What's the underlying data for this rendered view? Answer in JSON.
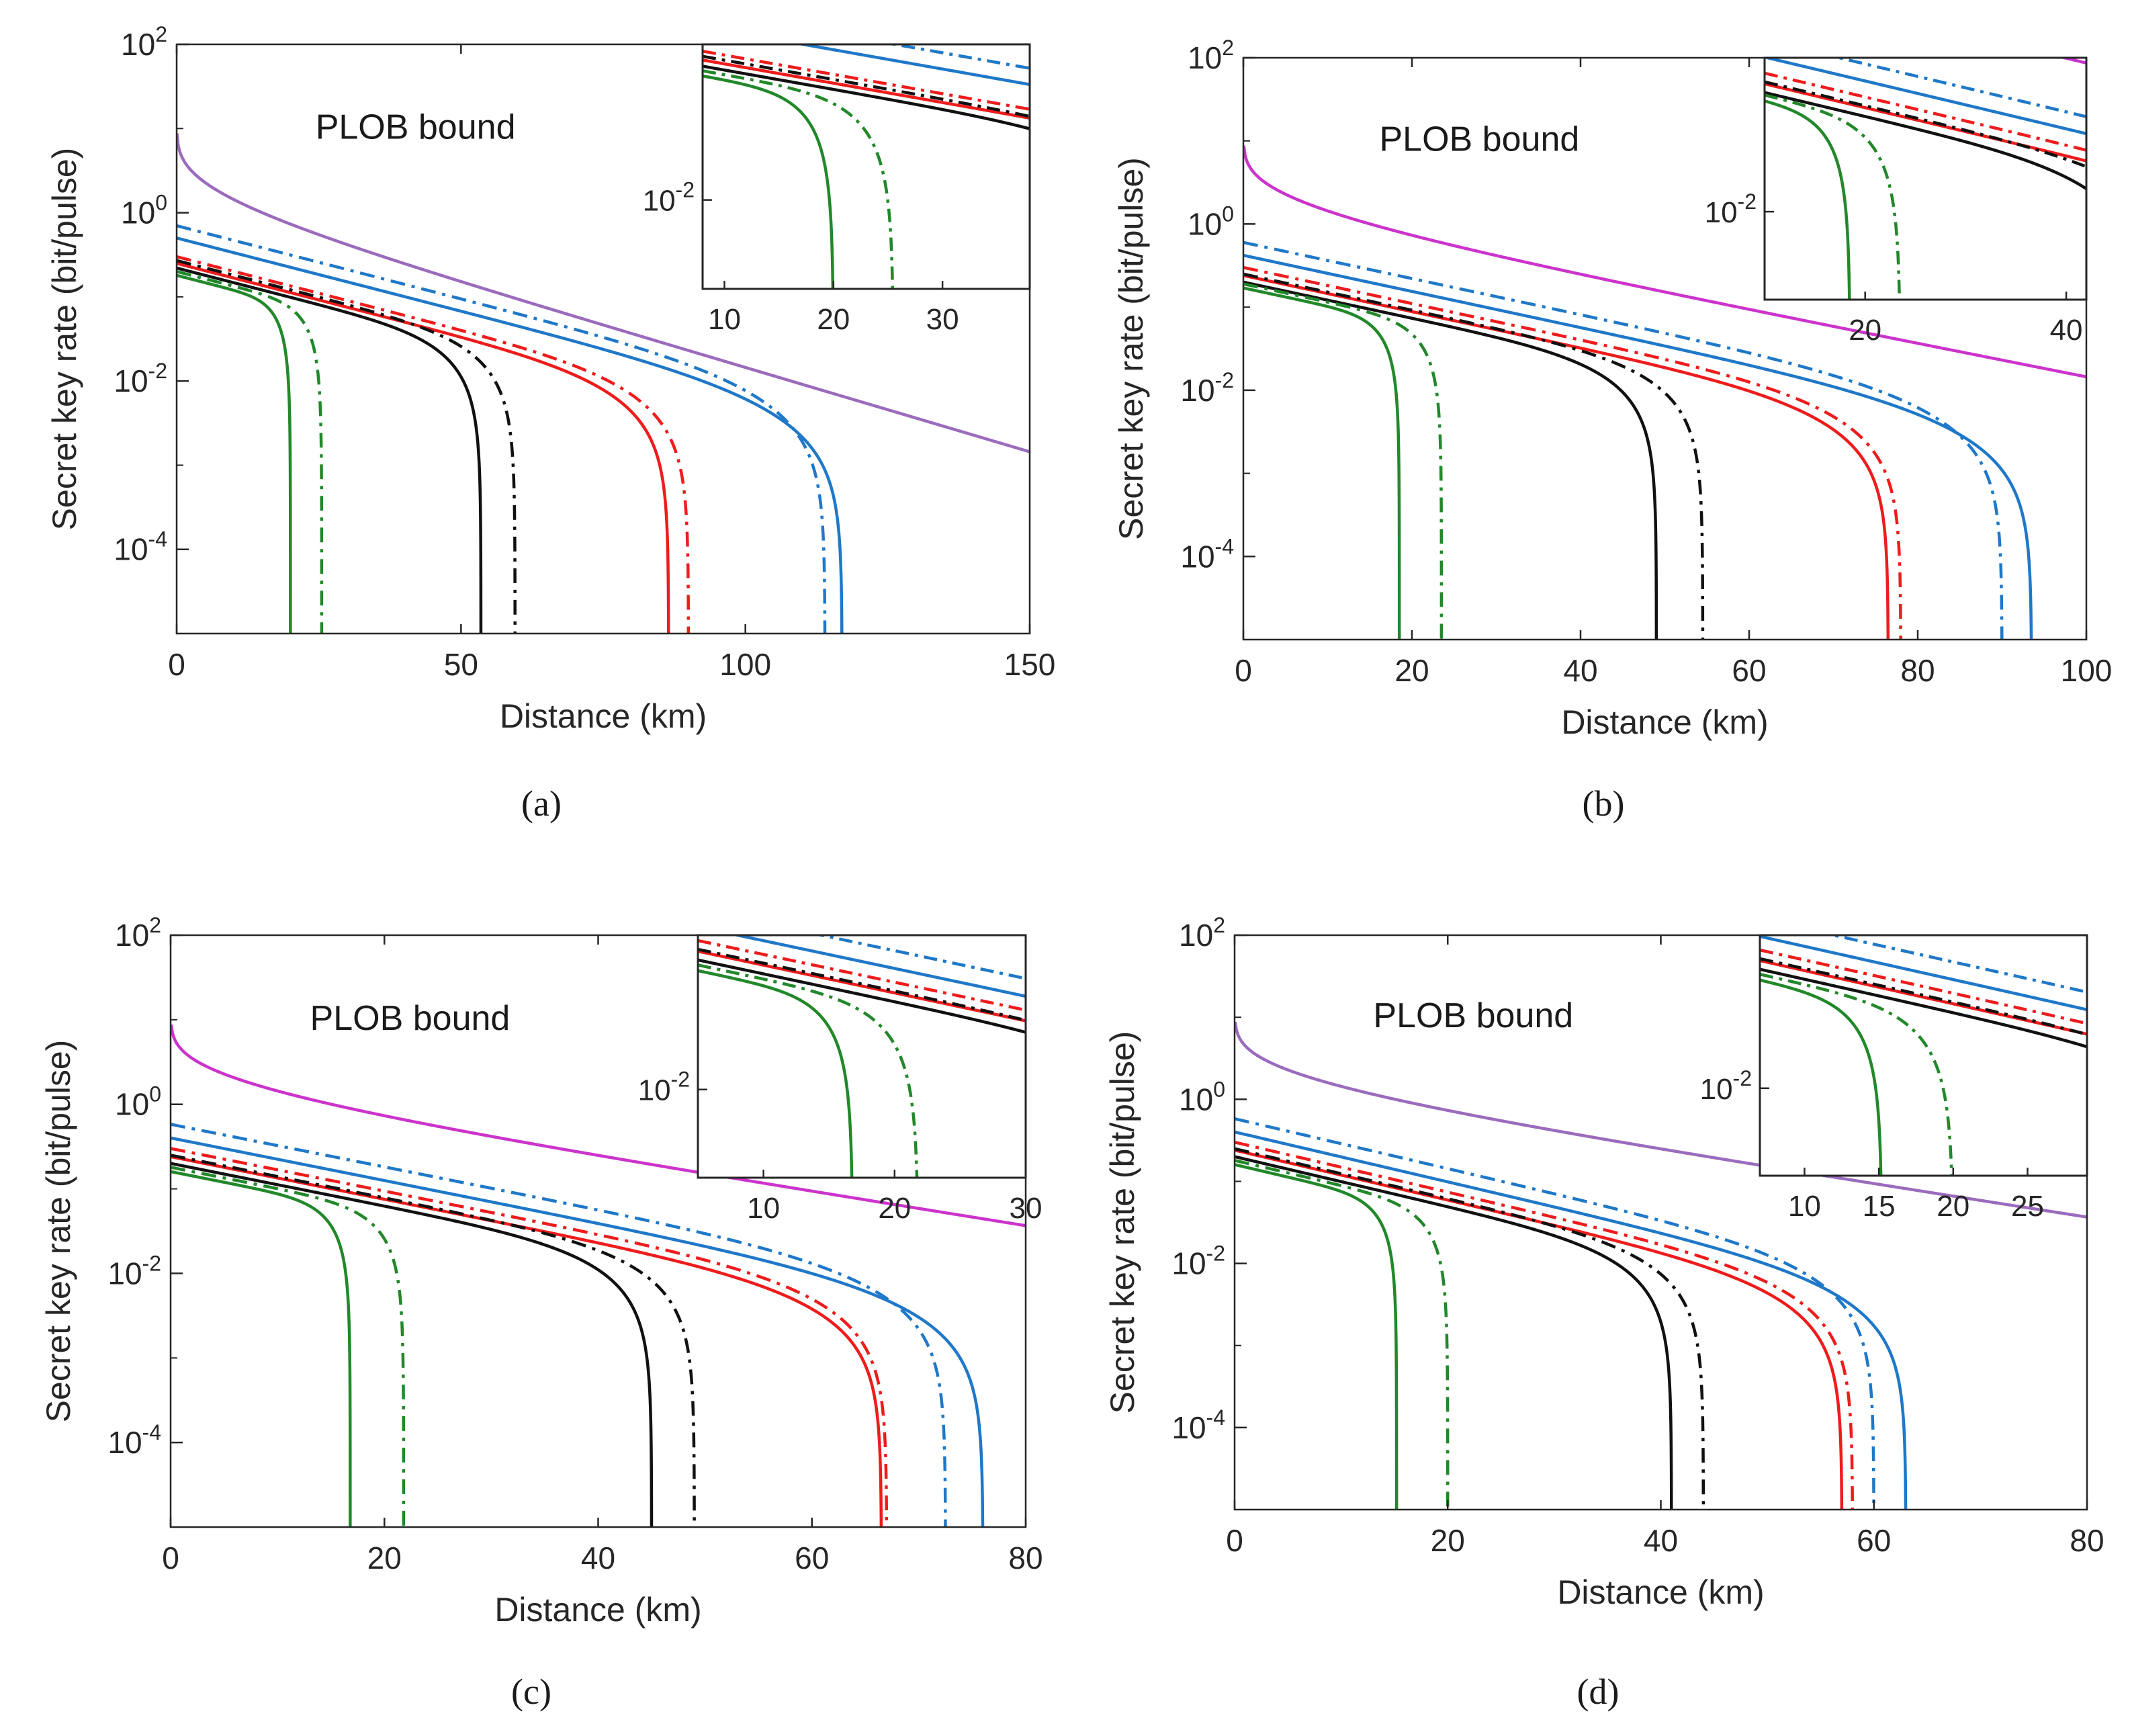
{
  "colors": {
    "plob_a": "#9b6bbd",
    "plob_b": "#cc33cc",
    "blue": "#1f78c8",
    "red": "#ee1c1c",
    "black": "#111111",
    "green": "#22882a",
    "axis": "#262626"
  },
  "styles": {
    "solid": "solid",
    "dashdot": "dash-dot"
  },
  "chart_data": [
    {
      "type": "line",
      "panel_label": "(a)",
      "xlabel": "Distance (km)",
      "ylabel": "Secret key rate (bit/pulse)",
      "yscale": "log",
      "xlim": [
        0,
        150
      ],
      "ylim_exp": [
        -5,
        2
      ],
      "xticks": [
        0,
        50,
        100,
        150
      ],
      "xticklabels": [
        "0",
        "50",
        "100",
        "150"
      ],
      "yticks_exp": [
        -4,
        -2,
        0,
        2
      ],
      "annotation": "PLOB bound",
      "plob_color": "plob_a",
      "series": [
        {
          "name": "PLOB bound",
          "color": "plob_a",
          "style": "solid",
          "kind": "plob",
          "lmax": 150
        },
        {
          "name": "blue solid",
          "color": "blue",
          "style": "solid",
          "kind": "key",
          "r0": 0.5,
          "alpha": 0.04,
          "L": 117
        },
        {
          "name": "blue dash-dot",
          "color": "blue",
          "style": "dashdot",
          "kind": "key",
          "r0": 0.7,
          "alpha": 0.04,
          "L": 114
        },
        {
          "name": "red solid",
          "color": "red",
          "style": "solid",
          "kind": "key",
          "r0": 0.25,
          "alpha": 0.04,
          "L": 86.5
        },
        {
          "name": "red dash-dot",
          "color": "red",
          "style": "dashdot",
          "kind": "key",
          "r0": 0.3,
          "alpha": 0.04,
          "L": 90
        },
        {
          "name": "black solid",
          "color": "black",
          "style": "solid",
          "kind": "key",
          "r0": 0.22,
          "alpha": 0.04,
          "L": 53.5
        },
        {
          "name": "black dash-dot",
          "color": "black",
          "style": "dashdot",
          "kind": "key",
          "r0": 0.27,
          "alpha": 0.04,
          "L": 59.5
        },
        {
          "name": "green solid",
          "color": "green",
          "style": "solid",
          "kind": "key",
          "r0": 0.18,
          "alpha": 0.04,
          "L": 20
        },
        {
          "name": "green dash-dot",
          "color": "green",
          "style": "dashdot",
          "kind": "key",
          "r0": 0.2,
          "alpha": 0.04,
          "L": 25.5
        }
      ],
      "inset": {
        "xlim": [
          8,
          38
        ],
        "ylim_exp": [
          -2.8,
          -0.6
        ],
        "xticks": [
          10,
          20,
          30
        ],
        "xticklabels": [
          "10",
          "20",
          "30"
        ],
        "yticks_exp": [
          -2
        ]
      }
    },
    {
      "type": "line",
      "panel_label": "(b)",
      "xlabel": "Distance (km)",
      "ylabel": "Secret key rate (bit/pulse)",
      "yscale": "log",
      "xlim": [
        0,
        100
      ],
      "ylim_exp": [
        -5,
        2
      ],
      "xticks": [
        0,
        20,
        40,
        60,
        80,
        100
      ],
      "xticklabels": [
        "0",
        "20",
        "40",
        "60",
        "80",
        "100"
      ],
      "yticks_exp": [
        -4,
        -2,
        0,
        2
      ],
      "annotation": "PLOB bound",
      "plob_color": "plob_b",
      "series": [
        {
          "name": "PLOB bound",
          "color": "plob_b",
          "style": "solid",
          "kind": "plob",
          "lmax": 100
        },
        {
          "name": "blue solid",
          "color": "blue",
          "style": "solid",
          "kind": "key",
          "r0": 0.42,
          "alpha": 0.05,
          "L": 93.5
        },
        {
          "name": "blue dash-dot",
          "color": "blue",
          "style": "dashdot",
          "kind": "key",
          "r0": 0.6,
          "alpha": 0.05,
          "L": 90
        },
        {
          "name": "red solid",
          "color": "red",
          "style": "solid",
          "kind": "key",
          "r0": 0.24,
          "alpha": 0.05,
          "L": 76.5
        },
        {
          "name": "red dash-dot",
          "color": "red",
          "style": "dashdot",
          "kind": "key",
          "r0": 0.3,
          "alpha": 0.05,
          "L": 78
        },
        {
          "name": "black solid",
          "color": "black",
          "style": "solid",
          "kind": "key",
          "r0": 0.2,
          "alpha": 0.05,
          "L": 49
        },
        {
          "name": "black dash-dot",
          "color": "black",
          "style": "dashdot",
          "kind": "key",
          "r0": 0.25,
          "alpha": 0.05,
          "L": 54.5
        },
        {
          "name": "green solid",
          "color": "green",
          "style": "solid",
          "kind": "key",
          "r0": 0.17,
          "alpha": 0.05,
          "L": 18.5
        },
        {
          "name": "green dash-dot",
          "color": "green",
          "style": "dashdot",
          "kind": "key",
          "r0": 0.19,
          "alpha": 0.05,
          "L": 23.5
        }
      ],
      "inset": {
        "xlim": [
          10,
          42
        ],
        "ylim_exp": [
          -2.8,
          -0.6
        ],
        "xticks": [
          20,
          40
        ],
        "xticklabels": [
          "20",
          "40"
        ],
        "yticks_exp": [
          -2
        ]
      }
    },
    {
      "type": "line",
      "panel_label": "(c)",
      "xlabel": "Distance (km)",
      "ylabel": "Secret key rate (bit/pulse)",
      "yscale": "log",
      "xlim": [
        0,
        80
      ],
      "ylim_exp": [
        -5,
        2
      ],
      "xticks": [
        0,
        20,
        40,
        60,
        80
      ],
      "xticklabels": [
        "0",
        "20",
        "40",
        "60",
        "80"
      ],
      "yticks_exp": [
        -4,
        -2,
        0,
        2
      ],
      "annotation": "PLOB bound",
      "plob_color": "plob_b",
      "series": [
        {
          "name": "PLOB bound",
          "color": "plob_b",
          "style": "solid",
          "kind": "plob",
          "lmax": 80
        },
        {
          "name": "blue solid",
          "color": "blue",
          "style": "solid",
          "kind": "key",
          "r0": 0.4,
          "alpha": 0.058,
          "L": 76
        },
        {
          "name": "blue dash-dot",
          "color": "blue",
          "style": "dashdot",
          "kind": "key",
          "r0": 0.58,
          "alpha": 0.058,
          "L": 72.5
        },
        {
          "name": "red solid",
          "color": "red",
          "style": "solid",
          "kind": "key",
          "r0": 0.24,
          "alpha": 0.058,
          "L": 66.5
        },
        {
          "name": "red dash-dot",
          "color": "red",
          "style": "dashdot",
          "kind": "key",
          "r0": 0.3,
          "alpha": 0.058,
          "L": 67
        },
        {
          "name": "black solid",
          "color": "black",
          "style": "solid",
          "kind": "key",
          "r0": 0.2,
          "alpha": 0.058,
          "L": 45
        },
        {
          "name": "black dash-dot",
          "color": "black",
          "style": "dashdot",
          "kind": "key",
          "r0": 0.25,
          "alpha": 0.058,
          "L": 49
        },
        {
          "name": "green solid",
          "color": "green",
          "style": "solid",
          "kind": "key",
          "r0": 0.16,
          "alpha": 0.058,
          "L": 16.8
        },
        {
          "name": "green dash-dot",
          "color": "green",
          "style": "dashdot",
          "kind": "key",
          "r0": 0.18,
          "alpha": 0.058,
          "L": 21.8
        }
      ],
      "inset": {
        "xlim": [
          5,
          30
        ],
        "ylim_exp": [
          -2.8,
          -0.6
        ],
        "xticks": [
          10,
          20,
          30
        ],
        "xticklabels": [
          "10",
          "20",
          "30"
        ],
        "yticks_exp": [
          -2
        ]
      }
    },
    {
      "type": "line",
      "panel_label": "(d)",
      "xlabel": "Distance (km)",
      "ylabel": "Secret key rate (bit/pulse)",
      "yscale": "log",
      "xlim": [
        0,
        80
      ],
      "ylim_exp": [
        -5,
        2
      ],
      "xticks": [
        0,
        20,
        40,
        60,
        80
      ],
      "xticklabels": [
        "0",
        "20",
        "40",
        "60",
        "80"
      ],
      "yticks_exp": [
        -4,
        -2,
        0,
        2
      ],
      "annotation": "PLOB bound",
      "plob_color": "plob_a",
      "series": [
        {
          "name": "PLOB bound",
          "color": "plob_a",
          "style": "solid",
          "kind": "plob",
          "lmax": 80
        },
        {
          "name": "blue solid",
          "color": "blue",
          "style": "solid",
          "kind": "key",
          "r0": 0.4,
          "alpha": 0.07,
          "L": 63
        },
        {
          "name": "blue dash-dot",
          "color": "blue",
          "style": "dashdot",
          "kind": "key",
          "r0": 0.58,
          "alpha": 0.07,
          "L": 60
        },
        {
          "name": "red solid",
          "color": "red",
          "style": "solid",
          "kind": "key",
          "r0": 0.24,
          "alpha": 0.07,
          "L": 57
        },
        {
          "name": "red dash-dot",
          "color": "red",
          "style": "dashdot",
          "kind": "key",
          "r0": 0.3,
          "alpha": 0.07,
          "L": 58
        },
        {
          "name": "black solid",
          "color": "black",
          "style": "solid",
          "kind": "key",
          "r0": 0.2,
          "alpha": 0.07,
          "L": 41
        },
        {
          "name": "black dash-dot",
          "color": "black",
          "style": "dashdot",
          "kind": "key",
          "r0": 0.25,
          "alpha": 0.07,
          "L": 44
        },
        {
          "name": "green solid",
          "color": "green",
          "style": "solid",
          "kind": "key",
          "r0": 0.16,
          "alpha": 0.07,
          "L": 15.2
        },
        {
          "name": "green dash-dot",
          "color": "green",
          "style": "dashdot",
          "kind": "key",
          "r0": 0.18,
          "alpha": 0.07,
          "L": 20
        }
      ],
      "inset": {
        "xlim": [
          7,
          29
        ],
        "ylim_exp": [
          -2.8,
          -0.6
        ],
        "xticks": [
          10,
          15,
          20,
          25
        ],
        "xticklabels": [
          "10",
          "15",
          "20",
          "25"
        ],
        "yticks_exp": [
          -2
        ]
      }
    }
  ]
}
